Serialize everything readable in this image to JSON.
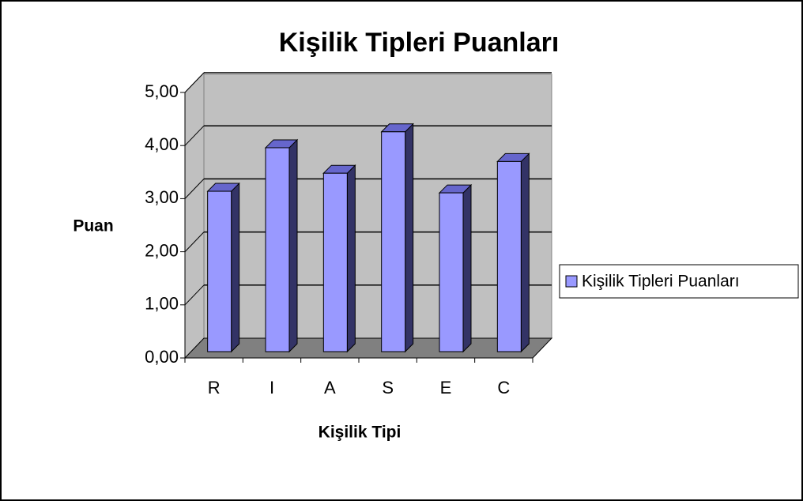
{
  "chart_data": {
    "type": "bar3d",
    "title": "Kişilik Tipleri Puanları",
    "x_label": "Kişilik Tipi",
    "y_label": "Puan",
    "categories": [
      "R",
      "I",
      "A",
      "S",
      "E",
      "C"
    ],
    "series": [
      {
        "name": "Kişilik Tipleri Puanları",
        "color": "#9999ff",
        "values": [
          3.02,
          3.84,
          3.36,
          4.14,
          2.99,
          3.58
        ]
      }
    ],
    "ylim": [
      0,
      5
    ],
    "yticks": [
      {
        "value": 0,
        "label": "0,00"
      },
      {
        "value": 1,
        "label": "1,00"
      },
      {
        "value": 2,
        "label": "2,00"
      },
      {
        "value": 3,
        "label": "3,00"
      },
      {
        "value": 4,
        "label": "4,00"
      },
      {
        "value": 5,
        "label": "5,00"
      }
    ],
    "grid": true,
    "legend": "right"
  }
}
